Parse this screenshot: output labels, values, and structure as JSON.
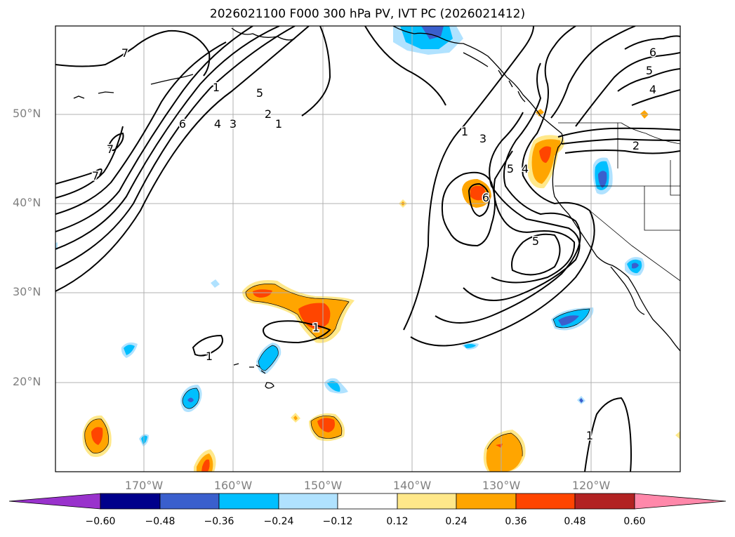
{
  "title": "2026021100 F000 300 hPa PV, IVT PC (2026021412)",
  "latitude_labels": [
    "50°N",
    "40°N",
    "30°N",
    "20°N"
  ],
  "longitude_labels": [
    "170°W",
    "160°W",
    "150°W",
    "140°W",
    "130°W",
    "120°W"
  ],
  "contour_labels": [
    "7",
    "7",
    "7",
    "5",
    "6",
    "4",
    "3",
    "2",
    "1",
    "1",
    "1",
    "1",
    "3",
    "5",
    "4",
    "5",
    "6",
    "2",
    "5",
    "6",
    "4",
    "1",
    "1"
  ],
  "colorbar": {
    "ticks": [
      "−0.60",
      "−0.48",
      "−0.36",
      "−0.24",
      "−0.12",
      "0.12",
      "0.24",
      "0.36",
      "0.48",
      "0.60"
    ],
    "colors": [
      "#9932cc",
      "#00008b",
      "#3a5fcd",
      "#00bfff",
      "#b0e2ff",
      "#ffffff",
      "#ffe88a",
      "#ffa500",
      "#ff4500",
      "#b22222",
      "#ff88aa"
    ]
  },
  "colors": {
    "neg_light": "#b0e2ff",
    "neg_mid": "#00bfff",
    "neg_dark": "#3a5fcd",
    "neg_darkest": "#00008b",
    "pos_light": "#ffe88a",
    "pos_mid": "#ffa500",
    "pos_strong": "#ff4500",
    "grid": "#b0b0b0"
  }
}
